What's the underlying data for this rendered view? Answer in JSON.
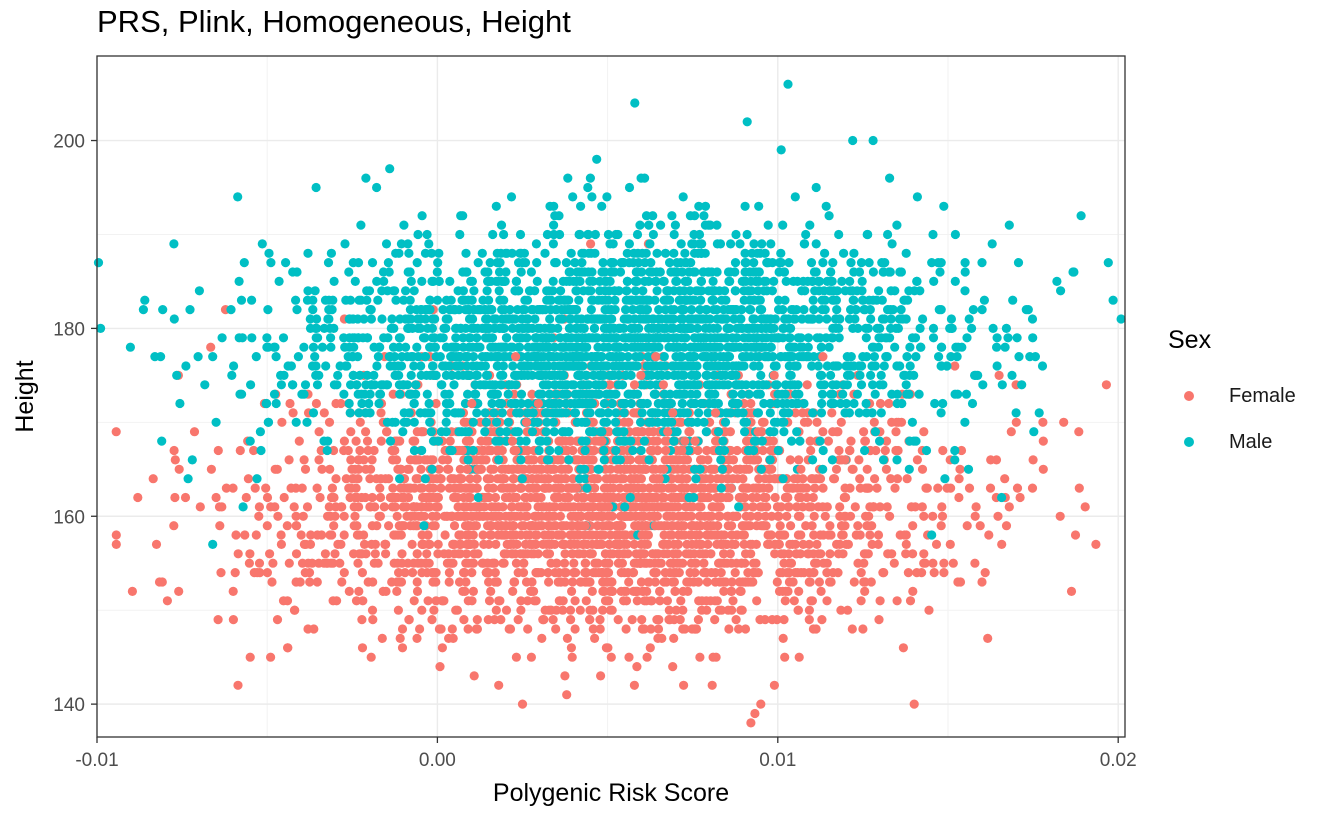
{
  "chart_data": {
    "type": "scatter",
    "title": "PRS, Plink, Homogeneous, Height",
    "xlabel": "Polygenic Risk Score",
    "ylabel": "Height",
    "xlim": [
      -0.01,
      0.0202
    ],
    "ylim": [
      136.5,
      209
    ],
    "x_ticks": [
      -0.01,
      0.0,
      0.01,
      0.02
    ],
    "x_tick_labels": [
      "-0.01",
      "0.00",
      "0.01",
      "0.02"
    ],
    "y_ticks": [
      140,
      160,
      180,
      200
    ],
    "y_tick_labels": [
      "140",
      "160",
      "180",
      "200"
    ],
    "grid": true,
    "legend": {
      "title": "Sex",
      "position": "right"
    },
    "series": [
      {
        "name": "Female",
        "color": "#F8766D",
        "x_center": 0.0048,
        "x_sd": 0.0047,
        "y_center": 161,
        "y_sd": 6.4,
        "n": 2600,
        "points": [
          [
            -0.0088,
            162
          ],
          [
            -0.0077,
            166
          ],
          [
            -0.0074,
            162
          ],
          [
            -0.0065,
            162
          ],
          [
            -0.0064,
            161
          ],
          [
            -0.0062,
            163
          ],
          [
            -0.006,
            152
          ],
          [
            -0.0055,
            145
          ],
          [
            -0.0054,
            167
          ],
          [
            -0.0049,
            145
          ],
          [
            -0.0044,
            146
          ],
          [
            -0.0038,
            148
          ],
          [
            -0.0022,
            146
          ],
          [
            0.0045,
            189
          ],
          [
            0.0062,
            189
          ],
          [
            0.0018,
            142
          ],
          [
            0.0025,
            140
          ],
          [
            0.0038,
            141
          ],
          [
            0.0095,
            140
          ],
          [
            0.0099,
            142
          ],
          [
            0.0081,
            145
          ],
          [
            0.0125,
            148
          ],
          [
            0.0138,
            164
          ],
          [
            0.0147,
            163
          ],
          [
            0.0152,
            176
          ],
          [
            0.0158,
            160
          ],
          [
            0.016,
            153
          ],
          [
            0.0165,
            175
          ],
          [
            0.0168,
            161
          ],
          [
            0.017,
            174
          ],
          [
            0.0175,
            166
          ],
          [
            0.0178,
            168
          ],
          [
            0.0178,
            165
          ],
          [
            0.0184,
            170
          ]
        ]
      },
      {
        "name": "Male",
        "color": "#00BFC4",
        "x_center": 0.0055,
        "x_sd": 0.0048,
        "y_center": 178.5,
        "y_sd": 6.2,
        "n": 2600,
        "points": [
          [
            -0.0083,
            177
          ],
          [
            -0.0081,
            168
          ],
          [
            -0.0072,
            166
          ],
          [
            -0.0066,
            177
          ],
          [
            -0.0065,
            170
          ],
          [
            -0.0066,
            157
          ],
          [
            -0.0058,
            173
          ],
          [
            -0.0055,
            168
          ],
          [
            -0.0053,
            164
          ],
          [
            -0.0052,
            169
          ],
          [
            -0.0048,
            178
          ],
          [
            -0.0038,
            188
          ],
          [
            -0.0038,
            184
          ],
          [
            -0.0032,
            187
          ],
          [
            -0.0021,
            196
          ],
          [
            -0.0014,
            197
          ],
          [
            0.0058,
            204
          ],
          [
            0.0103,
            206
          ],
          [
            0.0091,
            202
          ],
          [
            0.0101,
            199
          ],
          [
            0.0122,
            200
          ],
          [
            0.0128,
            200
          ],
          [
            0.0141,
            194
          ],
          [
            0.0135,
            191
          ],
          [
            0.0148,
            187
          ],
          [
            0.0155,
            184
          ],
          [
            0.016,
            187
          ],
          [
            0.0163,
            189
          ],
          [
            0.0168,
            191
          ],
          [
            0.0169,
            183
          ],
          [
            0.0173,
            182
          ],
          [
            0.017,
            171
          ],
          [
            0.0182,
            185
          ],
          [
            0.0187,
            186
          ],
          [
            0.0152,
            167
          ]
        ]
      }
    ]
  }
}
